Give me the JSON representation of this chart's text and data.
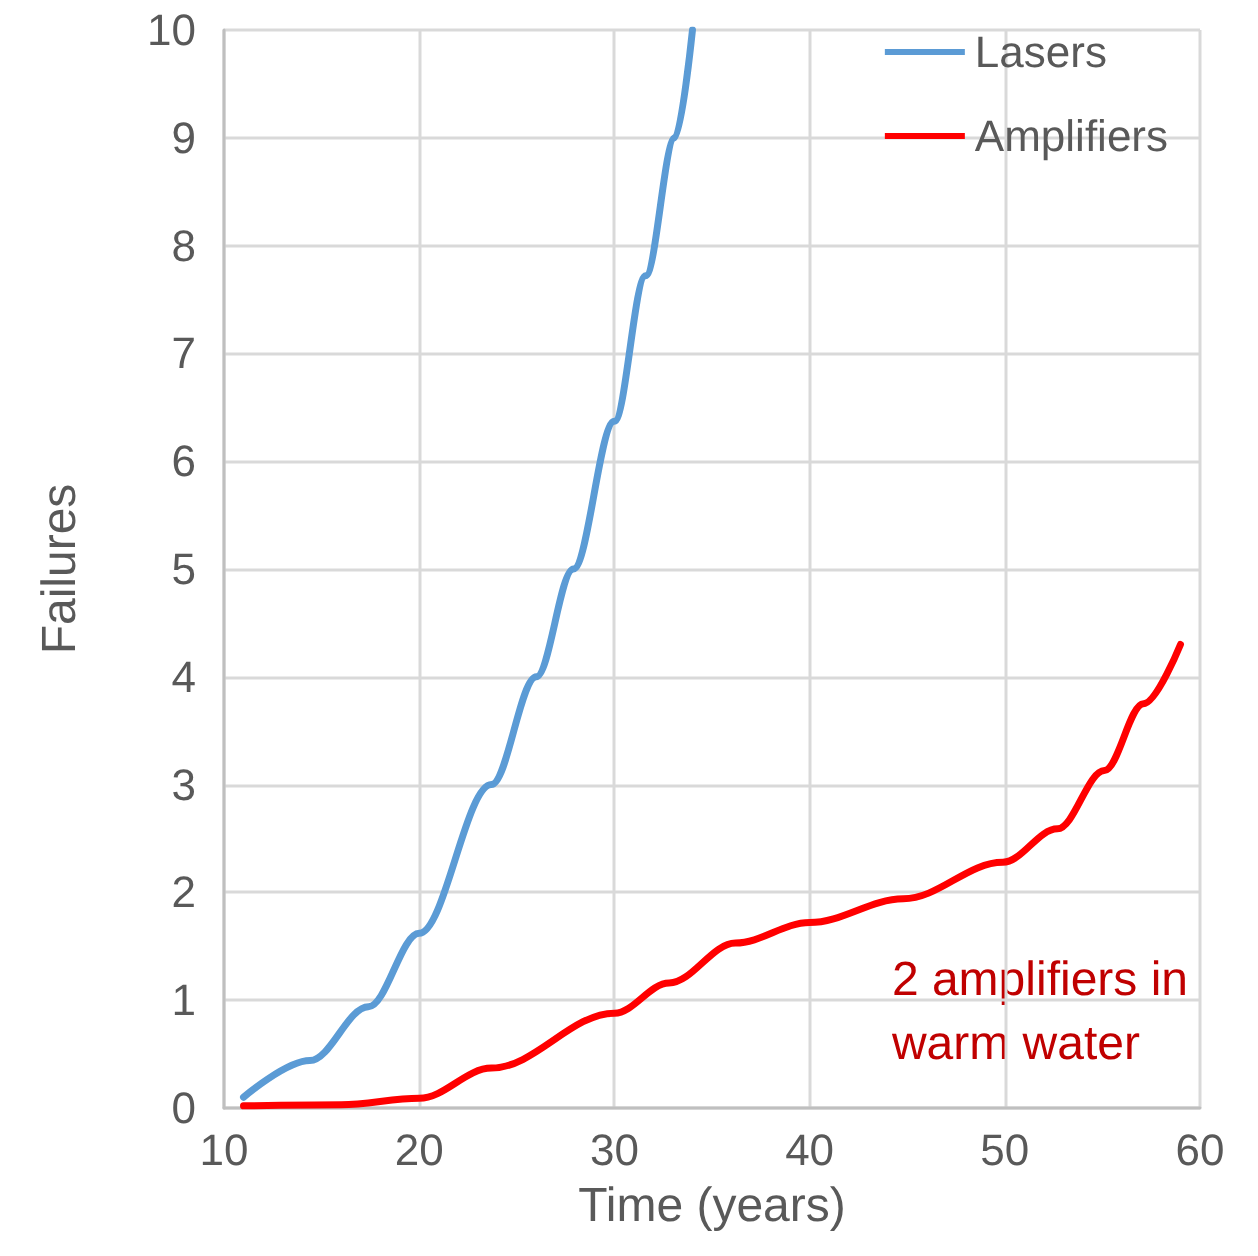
{
  "chart_data": {
    "type": "line",
    "xlabel": "Time (years)",
    "ylabel": "Failures",
    "xlim": [
      10,
      60
    ],
    "xticks": [
      10,
      20,
      30,
      40,
      50,
      60
    ],
    "ylim": [
      0,
      10
    ],
    "yticks": [
      0,
      1,
      2,
      3,
      4,
      5,
      6,
      7,
      8,
      9,
      10
    ],
    "grid": true,
    "legend": "top right",
    "marker": "none",
    "line_style": "solid",
    "annotations": [
      "2 amplifiers in\nwarm water"
    ],
    "series": [
      {
        "name": "Lasers",
        "color": "#5b9bd5",
        "x": [
          11,
          14.4,
          17.4,
          20,
          23.7,
          26,
          27.9,
          30,
          31.6,
          33.1,
          34
        ],
        "values": [
          0.1,
          0.44,
          0.94,
          1.62,
          3,
          4,
          5,
          6.37,
          7.72,
          9,
          10
        ]
      },
      {
        "name": "Amplifiers",
        "color": "#ff0000",
        "x": [
          11,
          16,
          20,
          23.7,
          30,
          32.8,
          36.2,
          40,
          44.8,
          49.9,
          52.7,
          55.1,
          57.1,
          59
        ],
        "values": [
          0.02,
          0.03,
          0.09,
          0.37,
          0.88,
          1.16,
          1.53,
          1.72,
          1.94,
          2.28,
          2.59,
          3.13,
          3.75,
          4.3
        ]
      }
    ]
  }
}
